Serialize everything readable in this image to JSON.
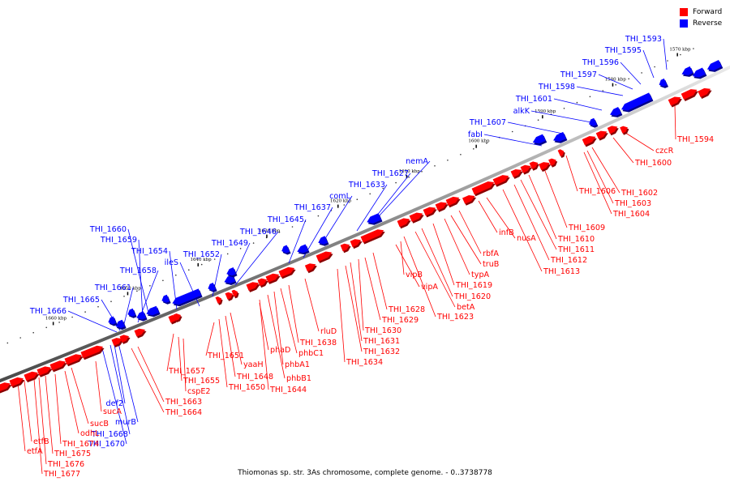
{
  "legend": {
    "forward_label": "Forward",
    "reverse_label": "Reverse",
    "forward_color": "#ff0000",
    "reverse_color": "#0000ff"
  },
  "caption": "Thiomonas sp. str. 3As chromosome, complete genome. - 0..3738778",
  "kbp_ticks": [
    "1570 kbp",
    "1580 kbp",
    "1590 kbp",
    "1600 kbp",
    "1610 kbp",
    "1620 kbp",
    "1630 kbp",
    "1640 kbp",
    "1650 kbp",
    "1660 kbp"
  ],
  "reverse_labels": [
    "THI_1593",
    "THI_1595",
    "THI_1596",
    "THI_1597",
    "THI_1598",
    "THI_1601",
    "alkK",
    "THI_1607",
    "fabI",
    "nemA",
    "THI_1627",
    "THI_1633",
    "comL",
    "THI_1637",
    "THI_1645",
    "THI_1646",
    "THI_1649",
    "THI_1652",
    "ileS",
    "THI_1654",
    "THI_1660",
    "THI_1659",
    "THI_1658",
    "THI_1661",
    "THI_1665",
    "THI_1666",
    "def2",
    "murB",
    "THI_1668",
    "THI_1670"
  ],
  "forward_labels": [
    "THI_1594",
    "czcR",
    "THI_1600",
    "THI_1602",
    "THI_1603",
    "THI_1604",
    "THI_1606",
    "THI_1609",
    "THI_1610",
    "THI_1611",
    "THI_1612",
    "THI_1613",
    "nusA",
    "infB",
    "rbfA",
    "truB",
    "typA",
    "THI_1619",
    "THI_1620",
    "betA",
    "THI_1623",
    "vipB",
    "vipA",
    "THI_1628",
    "THI_1629",
    "THI_1630",
    "THI_1631",
    "THI_1632",
    "THI_1634",
    "rluD",
    "THI_1638",
    "phbC1",
    "phbA1",
    "phbB1",
    "THI_1644",
    "phaD",
    "yaaH",
    "THI_1648",
    "THI_1650",
    "THI_1651",
    "THI_1657",
    "THI_1655",
    "cspE2",
    "THI_1663",
    "THI_1664",
    "sucA",
    "sucB",
    "odhL",
    "THI_1674",
    "THI_1675",
    "THI_1676",
    "THI_1677",
    "etfB",
    "etfA"
  ]
}
